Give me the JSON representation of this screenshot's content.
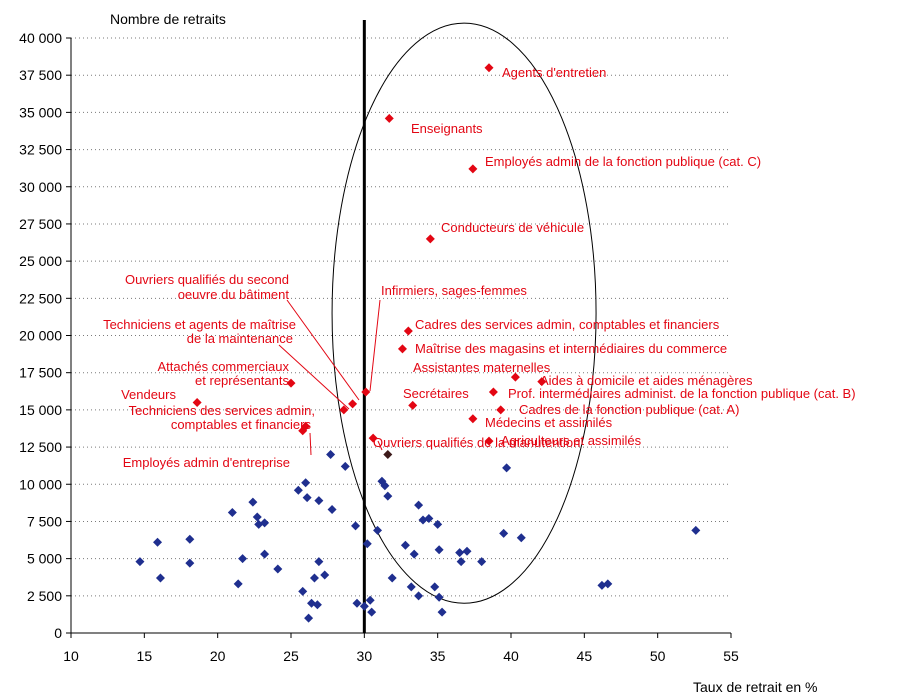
{
  "chart_data": {
    "type": "scatter",
    "ylabel": "Nombre de retraits",
    "xlabel": "Taux de retrait en %",
    "xlim": [
      10,
      55
    ],
    "ylim": [
      0,
      40000
    ],
    "x_ticks": [
      10,
      15,
      20,
      25,
      30,
      35,
      40,
      45,
      50,
      55
    ],
    "x_tick_labels": [
      "10",
      "15",
      "20",
      "25",
      "30",
      "35",
      "40",
      "45",
      "50",
      "55"
    ],
    "y_ticks": [
      0,
      2500,
      5000,
      7500,
      10000,
      12500,
      15000,
      17500,
      20000,
      22500,
      25000,
      27500,
      30000,
      32500,
      35000,
      37500,
      40000
    ],
    "y_tick_labels": [
      "0",
      "2 500",
      "5 000",
      "7 500",
      "10 000",
      "12 500",
      "15 000",
      "17 500",
      "20 000",
      "22 500",
      "25 000",
      "27 500",
      "30 000",
      "32 500",
      "35 000",
      "37 500",
      "40 000"
    ],
    "grid": "dotted horizontal",
    "reference_line_x": 30,
    "ellipse": {
      "cx": 36.8,
      "cy": 21500,
      "rx": 9.0,
      "ry": 19500
    },
    "colors": {
      "labeled": "#e30613",
      "other": "#1f2f8f",
      "highlight": "#3d1a1a",
      "reference_line": "#000000",
      "grid": "#7a7a7a"
    },
    "labeled_points": [
      {
        "name": "Agents d'entretien",
        "x": 38.5,
        "y": 38000
      },
      {
        "name": "Enseignants",
        "x": 31.7,
        "y": 34600
      },
      {
        "name": "Employés admin de la fonction publique (cat. C)",
        "x": 37.4,
        "y": 31200
      },
      {
        "name": "Conducteurs de véhicule",
        "x": 34.5,
        "y": 26500
      },
      {
        "name": "Infirmiers, sages-femmes",
        "x": 30.1,
        "y": 16200
      },
      {
        "name": "Cadres des services admin, comptables et financiers",
        "x": 33.0,
        "y": 20300
      },
      {
        "name": "Maîtrise des magasins et intermédiaires du commerce",
        "x": 32.6,
        "y": 19100
      },
      {
        "name": "Assistantes maternelles",
        "x": 40.3,
        "y": 17200
      },
      {
        "name": "Aides à domicile et aides ménagères",
        "x": 42.1,
        "y": 16900
      },
      {
        "name": "Prof. intermédiaires administ. de la fonction publique (cat. B)",
        "x": 38.8,
        "y": 16200
      },
      {
        "name": "Secrétaires",
        "x": 33.3,
        "y": 15300
      },
      {
        "name": "Cadres de la fonction publique (cat. A)",
        "x": 39.3,
        "y": 15000
      },
      {
        "name": "Médecins et assimilés",
        "x": 37.4,
        "y": 14400
      },
      {
        "name": "Agriculteurs et assimilés",
        "x": 38.5,
        "y": 12900
      },
      {
        "name": "Ouvriers qualifiés de la manutention",
        "x": 30.6,
        "y": 13100
      },
      {
        "name": "Ouvriers qualifiés du second oeuvre du bâtiment",
        "x": 29.2,
        "y": 15400
      },
      {
        "name": "Techniciens et agents de maîtrise de la maintenance",
        "x": 28.6,
        "y": 15000
      },
      {
        "name": "Attachés commerciaux et représentants",
        "x": 25.0,
        "y": 16800
      },
      {
        "name": "Vendeurs",
        "x": 18.6,
        "y": 15500
      },
      {
        "name": "Techniciens des services admin, comptables et financiers",
        "x": 26.0,
        "y": 13900
      },
      {
        "name": "Employés admin d'entreprise",
        "x": 25.8,
        "y": 13600
      }
    ],
    "highlight_point": {
      "x": 31.6,
      "y": 12000
    },
    "other_points": [
      {
        "x": 14.7,
        "y": 4800
      },
      {
        "x": 15.9,
        "y": 6100
      },
      {
        "x": 16.1,
        "y": 3700
      },
      {
        "x": 18.1,
        "y": 6300
      },
      {
        "x": 18.1,
        "y": 4700
      },
      {
        "x": 21.0,
        "y": 8100
      },
      {
        "x": 21.4,
        "y": 3300
      },
      {
        "x": 21.7,
        "y": 5000
      },
      {
        "x": 22.4,
        "y": 8800
      },
      {
        "x": 22.7,
        "y": 7800
      },
      {
        "x": 22.8,
        "y": 7300
      },
      {
        "x": 23.2,
        "y": 7400
      },
      {
        "x": 23.2,
        "y": 5300
      },
      {
        "x": 24.1,
        "y": 4300
      },
      {
        "x": 25.5,
        "y": 9600
      },
      {
        "x": 25.8,
        "y": 2800
      },
      {
        "x": 26.0,
        "y": 10100
      },
      {
        "x": 26.1,
        "y": 9100
      },
      {
        "x": 26.2,
        "y": 1000
      },
      {
        "x": 26.4,
        "y": 2000
      },
      {
        "x": 26.6,
        "y": 3700
      },
      {
        "x": 26.8,
        "y": 1900
      },
      {
        "x": 26.9,
        "y": 8900
      },
      {
        "x": 26.9,
        "y": 4800
      },
      {
        "x": 27.3,
        "y": 3900
      },
      {
        "x": 27.7,
        "y": 12000
      },
      {
        "x": 27.8,
        "y": 8300
      },
      {
        "x": 28.7,
        "y": 11200
      },
      {
        "x": 29.4,
        "y": 7200
      },
      {
        "x": 29.5,
        "y": 2000
      },
      {
        "x": 30.0,
        "y": 1800
      },
      {
        "x": 30.2,
        "y": 6000
      },
      {
        "x": 30.4,
        "y": 2200
      },
      {
        "x": 30.5,
        "y": 1400
      },
      {
        "x": 30.9,
        "y": 6900
      },
      {
        "x": 31.2,
        "y": 10200
      },
      {
        "x": 31.4,
        "y": 9900
      },
      {
        "x": 31.6,
        "y": 9200
      },
      {
        "x": 31.9,
        "y": 3700
      },
      {
        "x": 32.8,
        "y": 5900
      },
      {
        "x": 33.2,
        "y": 3100
      },
      {
        "x": 33.4,
        "y": 5300
      },
      {
        "x": 33.7,
        "y": 2500
      },
      {
        "x": 33.7,
        "y": 8600
      },
      {
        "x": 34.0,
        "y": 7600
      },
      {
        "x": 34.4,
        "y": 7700
      },
      {
        "x": 34.8,
        "y": 3100
      },
      {
        "x": 35.0,
        "y": 7300
      },
      {
        "x": 35.1,
        "y": 5600
      },
      {
        "x": 35.1,
        "y": 2400
      },
      {
        "x": 35.3,
        "y": 1400
      },
      {
        "x": 36.5,
        "y": 5400
      },
      {
        "x": 36.6,
        "y": 4800
      },
      {
        "x": 37.0,
        "y": 5500
      },
      {
        "x": 38.0,
        "y": 4800
      },
      {
        "x": 39.5,
        "y": 6700
      },
      {
        "x": 39.7,
        "y": 11100
      },
      {
        "x": 40.7,
        "y": 6400
      },
      {
        "x": 46.2,
        "y": 3200
      },
      {
        "x": 46.6,
        "y": 3300
      },
      {
        "x": 52.6,
        "y": 6900
      }
    ]
  }
}
